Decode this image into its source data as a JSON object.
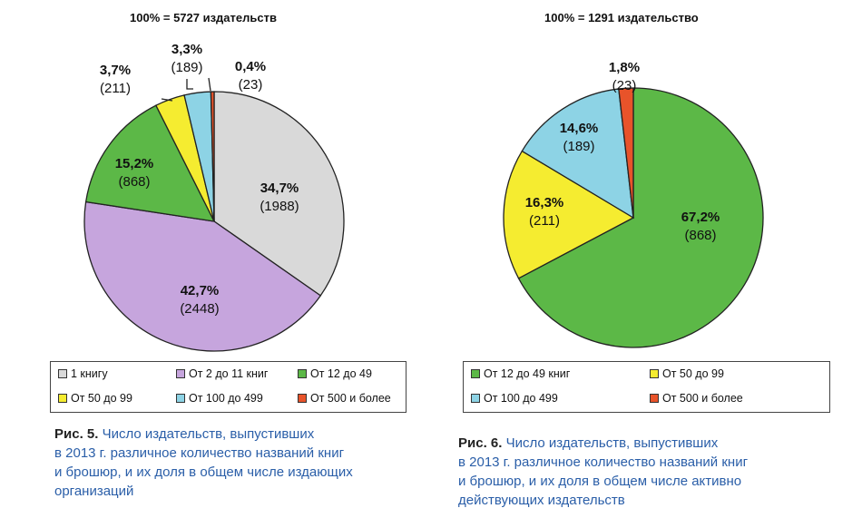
{
  "colors": {
    "one_book": "#d9d9d9",
    "two_to_eleven": "#c6a5dd",
    "twelve_to_49": "#5cb847",
    "fifty_to_99": "#f5ec30",
    "hundred_to_499": "#8dd3e5",
    "five_hundred_plus": "#e8532a"
  },
  "chart_data": [
    {
      "type": "pie",
      "title": "100% = 5727 издательств",
      "slices": [
        {
          "legend": "1 книгу",
          "pct_label": "34,7%",
          "count_label": "(1988)",
          "value": 34.7,
          "count": 1988,
          "color": "#d9d9d9"
        },
        {
          "legend": "От 2 до 11 книг",
          "pct_label": "42,7%",
          "count_label": "(2448)",
          "value": 42.7,
          "count": 2448,
          "color": "#c6a5dd"
        },
        {
          "legend": "От 12 до 49",
          "pct_label": "15,2%",
          "count_label": "(868)",
          "value": 15.2,
          "count": 868,
          "color": "#5cb847"
        },
        {
          "legend": "От 50 до 99",
          "pct_label": "3,7%",
          "count_label": "(211)",
          "value": 3.7,
          "count": 211,
          "color": "#f5ec30"
        },
        {
          "legend": "От 100 до 499",
          "pct_label": "3,3%",
          "count_label": "(189)",
          "value": 3.3,
          "count": 189,
          "color": "#8dd3e5"
        },
        {
          "legend": "От 500 и более",
          "pct_label": "0,4%",
          "count_label": "(23)",
          "value": 0.4,
          "count": 23,
          "color": "#e8532a"
        }
      ],
      "caption_fig": "Рис. 5.",
      "caption_text": [
        "Число издательств, выпустивших",
        "в 2013 г. различное количество названий книг",
        "и брошюр, и их доля в общем числе издающих",
        "организаций"
      ]
    },
    {
      "type": "pie",
      "title": "100% = 1291 издательство",
      "slices": [
        {
          "legend": "От 12 до 49 книг",
          "pct_label": "67,2%",
          "count_label": "(868)",
          "value": 67.2,
          "count": 868,
          "color": "#5cb847"
        },
        {
          "legend": "От 50 до 99",
          "pct_label": "16,3%",
          "count_label": "(211)",
          "value": 16.3,
          "count": 211,
          "color": "#f5ec30"
        },
        {
          "legend": "От 100 до 499",
          "pct_label": "14,6%",
          "count_label": "(189)",
          "value": 14.6,
          "count": 189,
          "color": "#8dd3e5"
        },
        {
          "legend": "От 500 и более",
          "pct_label": "1,8%",
          "count_label": "(23)",
          "value": 1.8,
          "count": 23,
          "color": "#e8532a"
        }
      ],
      "caption_fig": "Рис. 6.",
      "caption_text": [
        "Число издательств, выпустивших",
        "в 2013 г. различное количество названий книг",
        "и брошюр, и их доля в общем числе активно",
        "действующих издательств"
      ]
    }
  ]
}
